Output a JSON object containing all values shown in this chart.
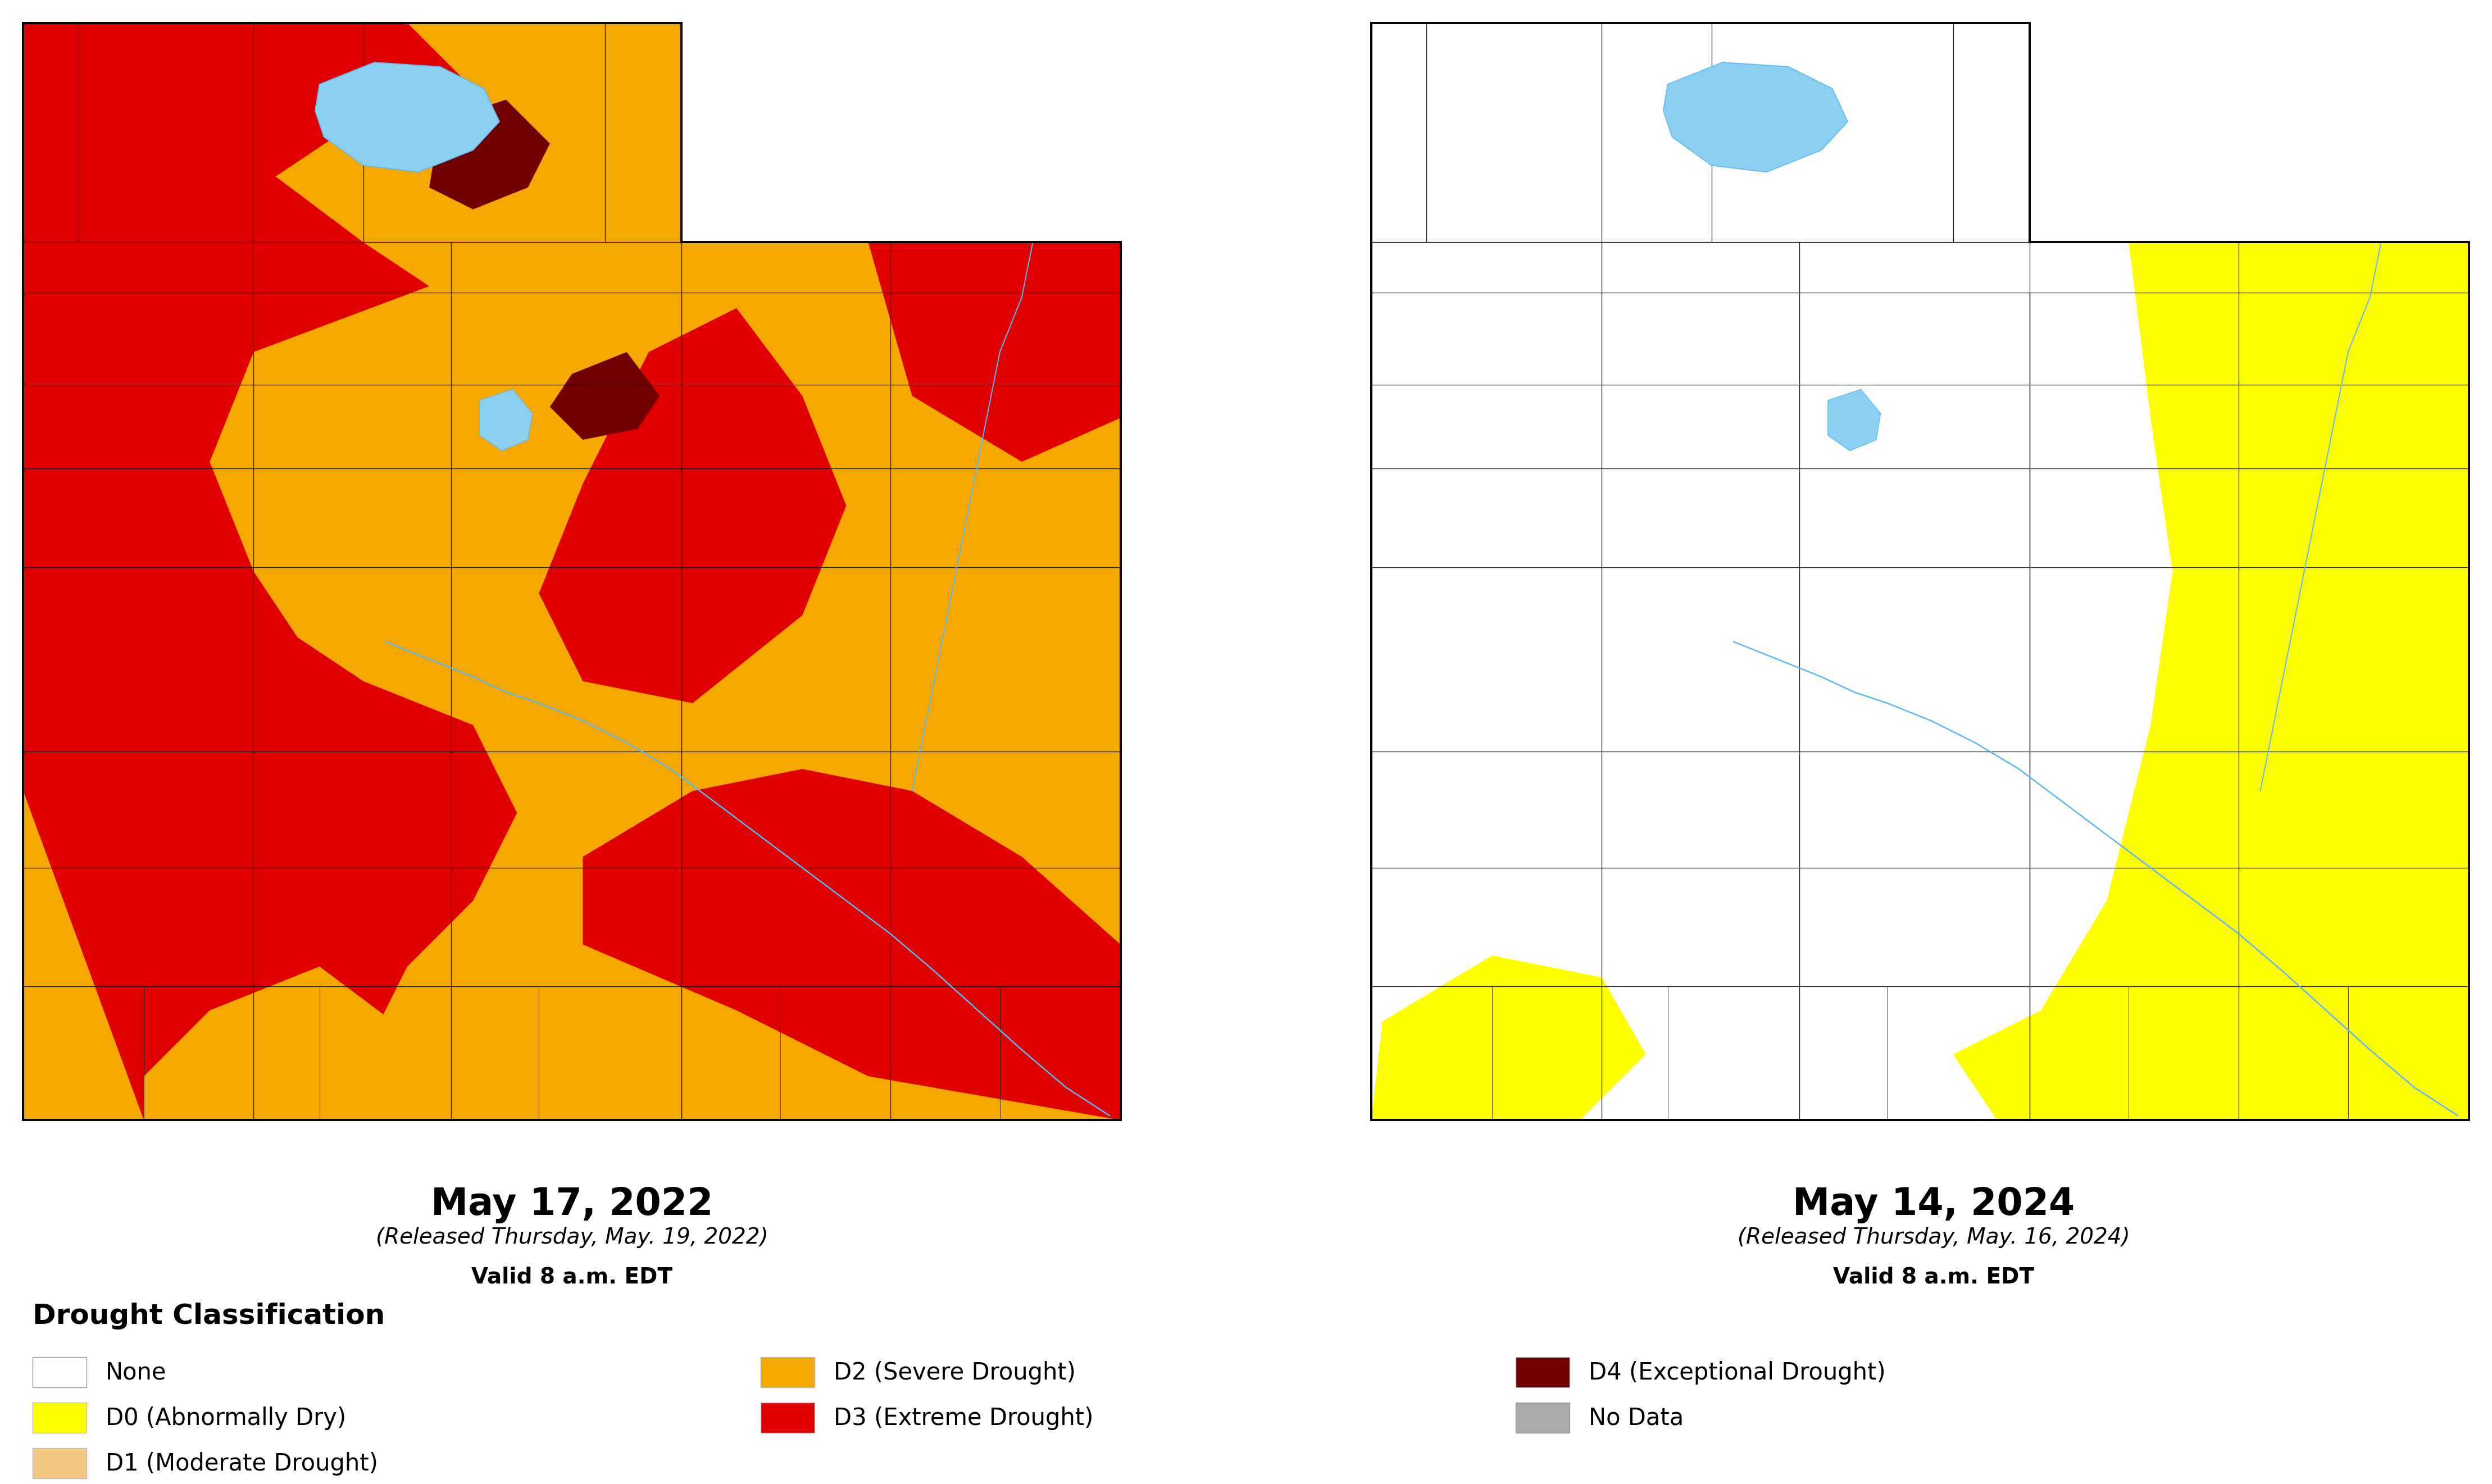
{
  "title_2022": "May 17, 2022",
  "subtitle_2022": "(Released Thursday, May. 19, 2022)",
  "valid_2022": "Valid 8 a.m. EDT",
  "title_2024": "May 14, 2024",
  "subtitle_2024": "(Released Thursday, May. 16, 2024)",
  "valid_2024": "Valid 8 a.m. EDT",
  "legend_title": "Drought Classification",
  "legend_items": [
    {
      "label": "None",
      "color": "#ffffff",
      "edgecolor": "#999999"
    },
    {
      "label": "D0 (Abnormally Dry)",
      "color": "#ffff00",
      "edgecolor": "#bbbbbb"
    },
    {
      "label": "D1 (Moderate Drought)",
      "color": "#f5c882",
      "edgecolor": "#bbbbbb"
    },
    {
      "label": "D2 (Severe Drought)",
      "color": "#f5a800",
      "edgecolor": "#bbbbbb"
    },
    {
      "label": "D3 (Extreme Drought)",
      "color": "#e00000",
      "edgecolor": "#bbbbbb"
    },
    {
      "label": "D4 (Exceptional Drought)",
      "color": "#730000",
      "edgecolor": "#bbbbbb"
    },
    {
      "label": "No Data",
      "color": "#aaaaaa",
      "edgecolor": "#999999"
    }
  ],
  "background_color": "#ffffff",
  "county_line_color": "#111111",
  "state_border_color": "#000000",
  "river_color": "#5bb8f5",
  "lake_color": "#8bd0f0",
  "title_fontsize": 48,
  "subtitle_fontsize": 28,
  "valid_fontsize": 28,
  "legend_title_fontsize": 36,
  "legend_fontsize": 30
}
